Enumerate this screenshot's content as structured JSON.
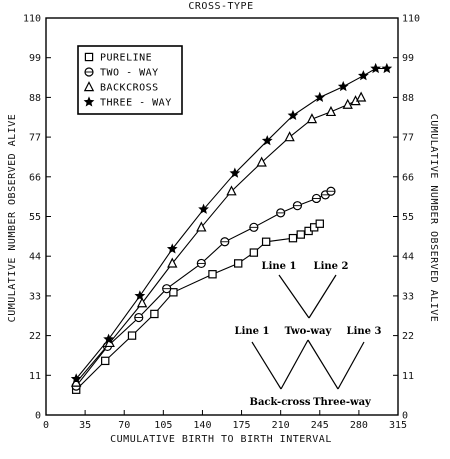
{
  "chart_data": {
    "type": "line",
    "title": "CROSS-TYPE",
    "xlabel": "CUMULATIVE BIRTH TO BIRTH INTERVAL",
    "ylabel": "CUMULATIVE NUMBER OBSERVED ALIVE",
    "ylabel_right": "CUMULATIVE NUMBER OBSERVED ALIVE",
    "xlim": [
      0,
      315
    ],
    "ylim": [
      0,
      110
    ],
    "xticks": [
      0,
      35,
      70,
      105,
      140,
      175,
      210,
      245,
      280,
      315
    ],
    "yticks": [
      0,
      11,
      22,
      33,
      44,
      55,
      66,
      77,
      88,
      99,
      110
    ],
    "legend_position": "top-left",
    "grid": false,
    "series": [
      {
        "name": "PURELINE",
        "marker": "square",
        "points": [
          [
            27,
            7
          ],
          [
            53,
            15
          ],
          [
            77,
            22
          ],
          [
            97,
            28
          ],
          [
            114,
            34
          ],
          [
            149,
            39
          ],
          [
            172,
            42
          ],
          [
            186,
            45
          ],
          [
            197,
            48
          ],
          [
            221,
            49
          ],
          [
            228,
            50
          ],
          [
            235,
            51
          ],
          [
            240,
            52
          ],
          [
            245,
            53
          ]
        ]
      },
      {
        "name": "TWO - WAY",
        "marker": "circle",
        "points": [
          [
            27,
            8
          ],
          [
            55,
            19
          ],
          [
            83,
            27
          ],
          [
            108,
            35
          ],
          [
            139,
            42
          ],
          [
            160,
            48
          ],
          [
            186,
            52
          ],
          [
            210,
            56
          ],
          [
            225,
            58
          ],
          [
            242,
            60
          ],
          [
            250,
            61
          ],
          [
            255,
            62
          ]
        ]
      },
      {
        "name": "BACKCROSS",
        "marker": "triangle",
        "points": [
          [
            27,
            9
          ],
          [
            57,
            20
          ],
          [
            86,
            31
          ],
          [
            113,
            42
          ],
          [
            139,
            52
          ],
          [
            166,
            62
          ],
          [
            193,
            70
          ],
          [
            218,
            77
          ],
          [
            238,
            82
          ],
          [
            255,
            84
          ],
          [
            270,
            86
          ],
          [
            277,
            87
          ],
          [
            282,
            88
          ]
        ]
      },
      {
        "name": "THREE - WAY",
        "marker": "star",
        "points": [
          [
            27,
            10
          ],
          [
            56,
            21
          ],
          [
            84,
            33
          ],
          [
            113,
            46
          ],
          [
            141,
            57
          ],
          [
            169,
            67
          ],
          [
            198,
            76
          ],
          [
            221,
            83
          ],
          [
            245,
            88
          ],
          [
            266,
            91
          ],
          [
            284,
            94
          ],
          [
            295,
            96
          ],
          [
            305,
            96
          ]
        ]
      }
    ],
    "annotations": {
      "diagram_labels": [
        "Line 1",
        "Line 2",
        "Two-way",
        "Line 1",
        "Line 3",
        "Back-cross",
        "Three-way"
      ]
    }
  }
}
